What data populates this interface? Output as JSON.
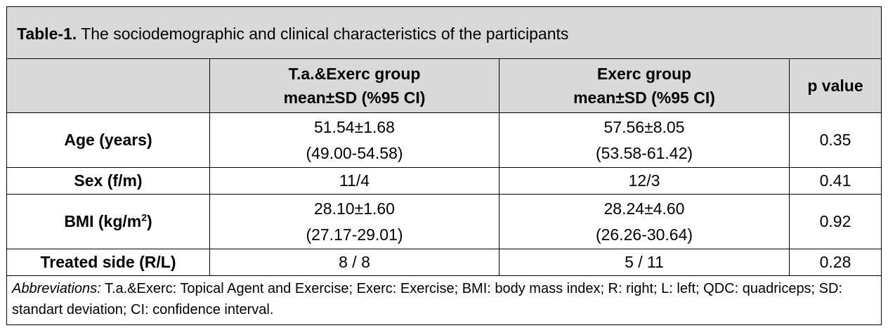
{
  "title": {
    "label": "Table-1.",
    "text": " The sociodemographic and clinical characteristics of the participants"
  },
  "header": {
    "col0": "",
    "col1_line1": "T.a.&Exerc group",
    "col1_line2": "mean±SD  (%95 CI)",
    "col2_line1": "Exerc group",
    "col2_line2": "mean±SD  (%95 CI)",
    "col3": "p value"
  },
  "rows": [
    {
      "label": "Age (years)",
      "g1_line1": "51.54±1.68",
      "g1_line2": "(49.00-54.58)",
      "g2_line1": "57.56±8.05",
      "g2_line2": "(53.58-61.42)",
      "p": "0.35"
    },
    {
      "label": "Sex (f/m)",
      "g1": "11/4",
      "g2": "12/3",
      "p": "0.41"
    },
    {
      "label_main": "BMI (kg/m",
      "label_sup": "2",
      "label_end": ")",
      "g1_line1": "28.10±1.60",
      "g1_line2": "(27.17-29.01)",
      "g2_line1": "28.24±4.60",
      "g2_line2": "(26.26-30.64)",
      "p": "0.92"
    },
    {
      "label": "Treated side (R/L)",
      "g1": "8 / 8",
      "g2": "5 / 11",
      "p": "0.28"
    }
  ],
  "footnote": {
    "label": "Abbreviations:",
    "text": " T.a.&Exerc: Topical Agent and Exercise; Exerc: Exercise; BMI: body mass index; R: right; L: left; QDC: quadriceps; SD: standart deviation; CI: confidence interval."
  }
}
